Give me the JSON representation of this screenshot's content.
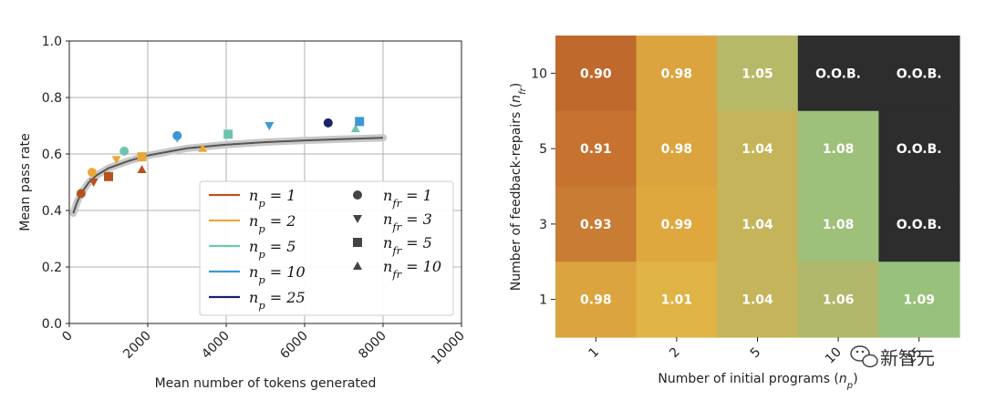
{
  "watermark": "新智元",
  "chart_data": [
    {
      "type": "scatter",
      "title": "",
      "xlabel": "Mean number of tokens generated",
      "ylabel": "Mean pass rate",
      "xlim": [
        0,
        10000
      ],
      "ylim": [
        0.0,
        1.0
      ],
      "xticks": [
        "0",
        "2000",
        "4000",
        "6000",
        "8000",
        "10000"
      ],
      "yticks": [
        "0.0",
        "0.2",
        "0.4",
        "0.6",
        "0.8",
        "1.0"
      ],
      "grid": true,
      "legend_position": "lower-right",
      "colors": {
        "np1": "#b5531f",
        "np2": "#e8a93a",
        "np5": "#6fc4b0",
        "np10": "#3d97d6",
        "np25": "#1c2266",
        "trend": "#555555",
        "legend_marker": "#444444"
      },
      "legend_lines": [
        {
          "key": "np1",
          "label": "n_p = 1"
        },
        {
          "key": "np2",
          "label": "n_p = 2"
        },
        {
          "key": "np5",
          "label": "n_p = 5"
        },
        {
          "key": "np10",
          "label": "n_p = 10"
        },
        {
          "key": "np25",
          "label": "n_p = 25"
        }
      ],
      "legend_markers": [
        {
          "marker": "circle",
          "label": "n_fr = 1"
        },
        {
          "marker": "triangle-down",
          "label": "n_fr = 3"
        },
        {
          "marker": "square",
          "label": "n_fr = 5"
        },
        {
          "marker": "triangle-up",
          "label": "n_fr = 10"
        }
      ],
      "trend_curve": [
        [
          100,
          0.39
        ],
        [
          200,
          0.43
        ],
        [
          300,
          0.46
        ],
        [
          500,
          0.5
        ],
        [
          700,
          0.525
        ],
        [
          1000,
          0.55
        ],
        [
          1500,
          0.575
        ],
        [
          2000,
          0.595
        ],
        [
          3000,
          0.62
        ],
        [
          4000,
          0.633
        ],
        [
          5000,
          0.642
        ],
        [
          6000,
          0.648
        ],
        [
          7000,
          0.653
        ],
        [
          8000,
          0.657
        ]
      ],
      "points": [
        {
          "series": "np1",
          "marker": "circle",
          "x": 300,
          "y": 0.46
        },
        {
          "series": "np1",
          "marker": "triangle-down",
          "x": 620,
          "y": 0.5
        },
        {
          "series": "np1",
          "marker": "square",
          "x": 1000,
          "y": 0.52
        },
        {
          "series": "np1",
          "marker": "triangle-up",
          "x": 1850,
          "y": 0.545
        },
        {
          "series": "np2",
          "marker": "circle",
          "x": 580,
          "y": 0.535
        },
        {
          "series": "np2",
          "marker": "triangle-down",
          "x": 1200,
          "y": 0.58
        },
        {
          "series": "np2",
          "marker": "square",
          "x": 1850,
          "y": 0.59
        },
        {
          "series": "np2",
          "marker": "triangle-up",
          "x": 3400,
          "y": 0.62
        },
        {
          "series": "np5",
          "marker": "circle",
          "x": 1400,
          "y": 0.61
        },
        {
          "series": "np5",
          "marker": "triangle-down",
          "x": 2750,
          "y": 0.655
        },
        {
          "series": "np5",
          "marker": "square",
          "x": 4050,
          "y": 0.67
        },
        {
          "series": "np5",
          "marker": "triangle-up",
          "x": 7300,
          "y": 0.69
        },
        {
          "series": "np10",
          "marker": "circle",
          "x": 2750,
          "y": 0.665
        },
        {
          "series": "np10",
          "marker": "triangle-down",
          "x": 5100,
          "y": 0.7
        },
        {
          "series": "np10",
          "marker": "square",
          "x": 7400,
          "y": 0.715
        },
        {
          "series": "np25",
          "marker": "circle",
          "x": 6600,
          "y": 0.71
        }
      ]
    },
    {
      "type": "heatmap",
      "xlabel": "Number of initial programs (n_p)",
      "ylabel": "Number of feedback-repairs (n_fr)",
      "x_categories": [
        "1",
        "2",
        "5",
        "10",
        "25"
      ],
      "y_categories": [
        "10",
        "5",
        "3",
        "1"
      ],
      "oob_color": "#2d2d2d",
      "values": [
        [
          "0.90",
          "0.98",
          "1.05",
          "O.O.B.",
          "O.O.B."
        ],
        [
          "0.91",
          "0.98",
          "1.04",
          "1.08",
          "O.O.B."
        ],
        [
          "0.93",
          "0.99",
          "1.04",
          "1.08",
          "O.O.B."
        ],
        [
          "0.98",
          "1.01",
          "1.04",
          "1.06",
          "1.09"
        ]
      ],
      "cell_colors": [
        [
          "#c0692c",
          "#dba43e",
          "#b6b968",
          "#2d2d2d",
          "#2d2d2d"
        ],
        [
          "#c7722f",
          "#dba43e",
          "#c5b459",
          "#9dc07a",
          "#2d2d2d"
        ],
        [
          "#c97c33",
          "#dea83e",
          "#c5b459",
          "#9dc07a",
          "#2d2d2d"
        ],
        [
          "#dba43e",
          "#dfb344",
          "#c5b459",
          "#b1b86b",
          "#98c27c"
        ]
      ]
    }
  ]
}
